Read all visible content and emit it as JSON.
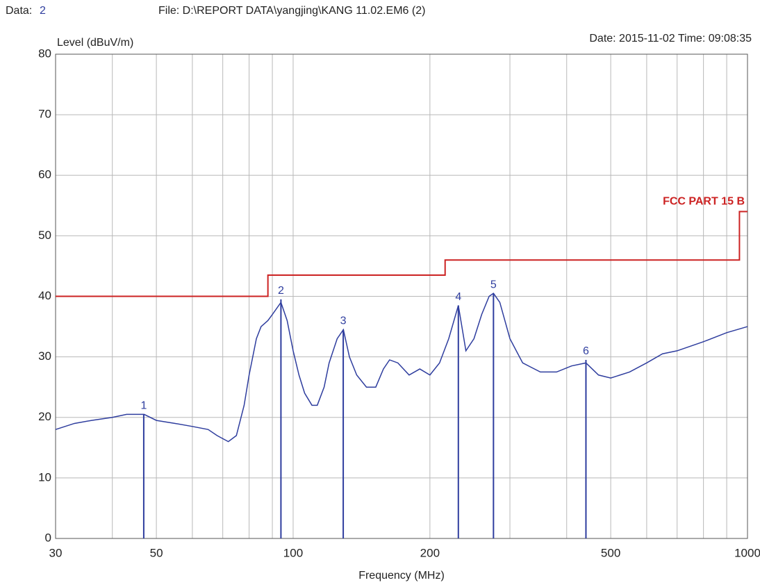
{
  "chart_data": {
    "type": "line",
    "data_caption": "Data:",
    "data_number": "2",
    "file": "File: D:\\REPORT DATA\\yangjing\\KANG 11.02.EM6  (2)",
    "date_time": "Date: 2015-11-02  Time: 09:08:35",
    "ylabel": "Level (dBuV/m)",
    "xlabel": "Frequency (MHz)",
    "xscale": "log",
    "xlim": [
      30,
      1000
    ],
    "ylim": [
      0,
      80
    ],
    "xticks": [
      30,
      50,
      100,
      200,
      500,
      1000
    ],
    "xgrid": [
      40,
      60,
      70,
      80,
      90,
      300,
      400,
      600,
      700,
      800,
      900
    ],
    "yticks": [
      0,
      10,
      20,
      30,
      40,
      50,
      60,
      70,
      80
    ],
    "grid": true,
    "series": [
      {
        "name": "FCC PART 15 B",
        "color": "#cc2222",
        "x": [
          30,
          88,
          88,
          216,
          216,
          960,
          960,
          1000
        ],
        "values": [
          40,
          40,
          43.5,
          43.5,
          46,
          46,
          54,
          54
        ]
      },
      {
        "color": "#2e3d9e",
        "x": [
          30,
          33,
          36,
          40,
          43,
          47,
          50,
          55,
          60,
          65,
          68,
          72,
          75,
          78,
          80,
          83,
          85,
          88,
          90,
          94,
          97,
          100,
          103,
          106,
          110,
          113,
          117,
          120,
          125,
          129,
          133,
          138,
          145,
          152,
          158,
          163,
          170,
          180,
          190,
          200,
          210,
          220,
          231,
          240,
          250,
          260,
          270,
          276,
          285,
          300,
          320,
          350,
          380,
          410,
          441,
          470,
          500,
          550,
          600,
          650,
          700,
          800,
          900,
          1000
        ],
        "values": [
          18,
          19,
          19.5,
          20,
          20.5,
          20.5,
          19.5,
          19,
          18.5,
          18,
          17,
          16,
          17,
          22,
          27,
          33,
          35,
          36,
          37,
          39,
          36,
          31,
          27,
          24,
          22,
          22,
          25,
          29,
          33,
          34.5,
          30,
          27,
          25,
          25,
          28,
          29.5,
          29,
          27,
          28,
          27,
          29,
          33,
          38.5,
          31,
          33,
          37,
          40,
          40.5,
          39,
          33,
          29,
          27.5,
          27.5,
          28.5,
          29,
          27,
          26.5,
          27.5,
          29,
          30.5,
          31,
          32.5,
          34,
          35
        ]
      }
    ],
    "markers": {
      "color": "#2e3d9e",
      "labels": [
        "1",
        "2",
        "3",
        "4",
        "5",
        "6"
      ],
      "x": [
        46.9,
        94,
        128.9,
        231,
        276,
        441
      ],
      "values": [
        20.5,
        39.5,
        34.5,
        38.5,
        40.5,
        29.5
      ]
    }
  }
}
